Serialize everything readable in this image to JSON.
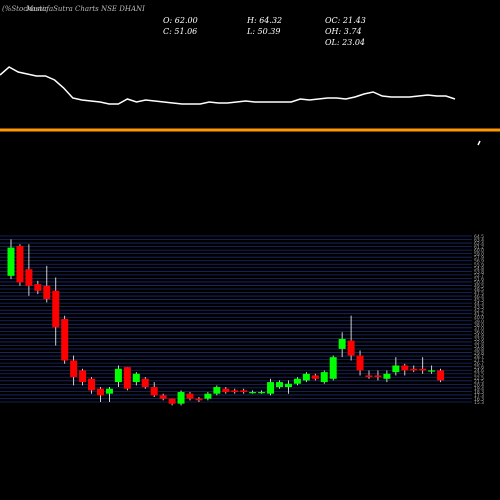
{
  "header": {
    "watermark": "(%Stochastic",
    "chart_title": "MunafaSutra Charts NSE DHANI"
  },
  "ohlc": {
    "o": "O: 62.00",
    "h": "H: 64.32",
    "oc": "OC: 21.43",
    "c": "C: 51.06",
    "l": "L: 50.39",
    "oh": "OH: 3.74",
    "ol": "OL: 23.04"
  },
  "colors": {
    "background": "#000000",
    "up": "#00ff00",
    "down": "#ff0000",
    "stoch_line": "#ffffff",
    "level_line": "#ff9900",
    "grid": "#1c2b6b"
  },
  "chart_data": [
    {
      "type": "line",
      "title": "",
      "x": [
        0,
        1,
        2,
        3,
        4,
        5,
        6,
        7,
        8,
        9,
        10,
        11,
        12,
        13,
        14,
        15,
        16,
        17,
        18,
        19,
        20,
        21,
        22,
        23,
        24,
        25,
        26,
        27,
        28,
        29,
        30,
        31,
        32,
        33,
        34,
        35,
        36,
        37,
        38,
        39,
        40,
        41,
        42,
        43,
        44,
        45,
        46,
        47,
        48,
        49,
        50
      ],
      "y": [
        85,
        93,
        88,
        86,
        84,
        84,
        80,
        72,
        62,
        60,
        59,
        58,
        56,
        56,
        61,
        58,
        60,
        59,
        58,
        57,
        56,
        56,
        56,
        58,
        57,
        57,
        58,
        59,
        58,
        58,
        58,
        58,
        58,
        61,
        60,
        61,
        62,
        62,
        61,
        63,
        66,
        68,
        64,
        63,
        63,
        63,
        64,
        65,
        64,
        64,
        61
      ],
      "level": 30
    },
    {
      "type": "candlestick",
      "title": "",
      "ylabel": "",
      "ylim": [
        0,
        100
      ],
      "ticks": [
        "64.5",
        "63.4",
        "62.4",
        "61.2",
        "60.0",
        "59.0",
        "57.9",
        "56.9",
        "55.9",
        "54.8",
        "53.8",
        "52.7",
        "51.6",
        "50.4",
        "49.5",
        "48.5",
        "47.5",
        "46.4",
        "45.3",
        "44.3",
        "43.3",
        "42.2",
        "41.2",
        "40.0",
        "39.0",
        "38.0",
        "37.0",
        "36.0",
        "34.9",
        "33.9",
        "32.9",
        "31.8",
        "30.8",
        "29.8",
        "28.7",
        "27.7",
        "26.7",
        "25.6",
        "24.6",
        "23.5",
        "22.5",
        "21.5",
        "20.4",
        "19.4",
        "18.3",
        "17.3",
        "16.3",
        "15.3"
      ],
      "candles": [
        {
          "o": 76,
          "c": 93,
          "h": 98,
          "l": 74
        },
        {
          "o": 94,
          "c": 72,
          "h": 95,
          "l": 70
        },
        {
          "o": 80,
          "c": 70,
          "h": 95,
          "l": 64
        },
        {
          "o": 71,
          "c": 67,
          "h": 73,
          "l": 65
        },
        {
          "o": 70,
          "c": 62,
          "h": 82,
          "l": 60
        },
        {
          "o": 67,
          "c": 45,
          "h": 75,
          "l": 34
        },
        {
          "o": 50,
          "c": 25,
          "h": 52,
          "l": 23
        },
        {
          "o": 25,
          "c": 15,
          "h": 28,
          "l": 10
        },
        {
          "o": 19,
          "c": 12,
          "h": 20,
          "l": 10
        },
        {
          "o": 14,
          "c": 7,
          "h": 15,
          "l": 5
        },
        {
          "o": 8,
          "c": 4,
          "h": 9,
          "l": 0
        },
        {
          "o": 5,
          "c": 8,
          "h": 9,
          "l": 0
        },
        {
          "o": 12,
          "c": 20,
          "h": 22,
          "l": 9
        },
        {
          "o": 21,
          "c": 8,
          "h": 21,
          "l": 7
        },
        {
          "o": 12,
          "c": 17,
          "h": 18,
          "l": 10
        },
        {
          "o": 14,
          "c": 9,
          "h": 15,
          "l": 8
        },
        {
          "o": 9,
          "c": 4,
          "h": 12,
          "l": 3
        },
        {
          "o": 4,
          "c": 2,
          "h": 5,
          "l": 1
        },
        {
          "o": 2,
          "c": -1,
          "h": 2,
          "l": -2
        },
        {
          "o": -1,
          "c": 6,
          "h": 7,
          "l": -2
        },
        {
          "o": 5,
          "c": 2,
          "h": 6,
          "l": 1
        },
        {
          "o": 2,
          "c": 1,
          "h": 3,
          "l": 0
        },
        {
          "o": 2,
          "c": 5,
          "h": 6,
          "l": 1
        },
        {
          "o": 5,
          "c": 9,
          "h": 10,
          "l": 4
        },
        {
          "o": 8,
          "c": 6,
          "h": 9,
          "l": 5
        },
        {
          "o": 7,
          "c": 6,
          "h": 8,
          "l": 5
        },
        {
          "o": 7,
          "c": 6,
          "h": 8,
          "l": 5
        },
        {
          "o": 6,
          "c": 6,
          "h": 7,
          "l": 5
        },
        {
          "o": 6,
          "c": 6,
          "h": 7,
          "l": 5
        },
        {
          "o": 5,
          "c": 12,
          "h": 14,
          "l": 4
        },
        {
          "o": 9,
          "c": 12,
          "h": 13,
          "l": 8
        },
        {
          "o": 9,
          "c": 11,
          "h": 13,
          "l": 5
        },
        {
          "o": 11,
          "c": 14,
          "h": 15,
          "l": 10
        },
        {
          "o": 13,
          "c": 17,
          "h": 18,
          "l": 12
        },
        {
          "o": 16,
          "c": 14,
          "h": 17,
          "l": 13
        },
        {
          "o": 12,
          "c": 18,
          "h": 19,
          "l": 11
        },
        {
          "o": 14,
          "c": 27,
          "h": 28,
          "l": 13
        },
        {
          "o": 32,
          "c": 38,
          "h": 42,
          "l": 27
        },
        {
          "o": 37,
          "c": 28,
          "h": 52,
          "l": 25
        },
        {
          "o": 28,
          "c": 19,
          "h": 31,
          "l": 16
        },
        {
          "o": 16,
          "c": 15,
          "h": 19,
          "l": 14
        },
        {
          "o": 16,
          "c": 15,
          "h": 19,
          "l": 13
        },
        {
          "o": 14,
          "c": 17,
          "h": 19,
          "l": 12
        },
        {
          "o": 18,
          "c": 22,
          "h": 27,
          "l": 16
        },
        {
          "o": 22,
          "c": 19,
          "h": 23,
          "l": 16
        },
        {
          "o": 20,
          "c": 19,
          "h": 22,
          "l": 18
        },
        {
          "o": 20,
          "c": 19,
          "h": 27,
          "l": 17
        },
        {
          "o": 19,
          "c": 19,
          "h": 22,
          "l": 17
        },
        {
          "o": 19,
          "c": 13,
          "h": 20,
          "l": 12
        }
      ]
    }
  ]
}
